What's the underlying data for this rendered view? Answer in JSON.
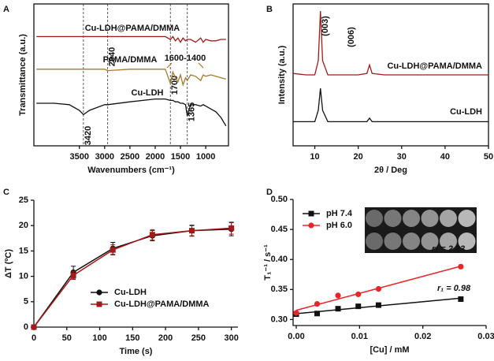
{
  "chart_data": [
    {
      "type": "line",
      "panel_label": "A",
      "xlabel": "Wavenumbers (cm⁻¹)",
      "ylabel": "Transmittance (a.u.)",
      "frame": "box",
      "xlim": [
        4400,
        550
      ],
      "ylim": [
        0,
        10
      ],
      "xticks": [
        3500,
        3000,
        2500,
        2000,
        1500,
        1000
      ],
      "x": [
        4350,
        4000,
        3700,
        3500,
        3420,
        3300,
        3000,
        2940,
        2500,
        2000,
        1800,
        1700,
        1650,
        1600,
        1550,
        1500,
        1450,
        1400,
        1365,
        1300,
        1200,
        1100,
        1050,
        1000,
        900,
        800,
        700,
        600
      ],
      "series": [
        {
          "name": "Cu-LDH@PAMA/DMMA",
          "color": "#a31a1a",
          "values": [
            7.7,
            7.7,
            7.7,
            7.7,
            7.7,
            7.7,
            7.7,
            7.7,
            7.7,
            7.7,
            7.7,
            7.5,
            7.7,
            7.4,
            7.6,
            7.3,
            7.6,
            7.4,
            7.5,
            7.5,
            7.3,
            7.6,
            7.3,
            7.5,
            7.4,
            7.4,
            7.5,
            7.5
          ]
        },
        {
          "name": "PAMA/DMMA",
          "color": "#a57a2a",
          "values": [
            5.4,
            5.4,
            5.4,
            5.4,
            5.4,
            5.4,
            5.4,
            5.3,
            5.4,
            5.4,
            5.4,
            4.4,
            5.2,
            4.8,
            4.5,
            5.0,
            4.3,
            4.8,
            4.6,
            5.0,
            4.9,
            4.6,
            5.0,
            4.9,
            5.0,
            4.9,
            4.8,
            4.7
          ]
        },
        {
          "name": "Cu-LDH",
          "color": "#111111",
          "values": [
            3.0,
            3.0,
            2.9,
            2.5,
            2.2,
            2.5,
            2.9,
            2.9,
            3.1,
            3.3,
            3.3,
            3.2,
            3.2,
            3.1,
            3.1,
            3.0,
            3.0,
            2.9,
            2.1,
            2.9,
            2.9,
            2.8,
            2.9,
            2.8,
            2.6,
            2.4,
            2.0,
            1.4
          ]
        }
      ],
      "vlines": [
        {
          "value": 3420,
          "label": "3420"
        },
        {
          "value": 2940,
          "label": "2940"
        },
        {
          "value": 1700,
          "label": "1700"
        },
        {
          "value": 1365,
          "label": "1365"
        }
      ],
      "annotations": [
        "1600-1400"
      ]
    },
    {
      "type": "line",
      "panel_label": "B",
      "xlabel": "2θ / Deg",
      "ylabel": "Intensity (a.u.)",
      "frame": "box",
      "xlim": [
        5,
        50
      ],
      "ylim": [
        0,
        10
      ],
      "xticks": [
        10,
        20,
        30,
        40,
        50
      ],
      "x": [
        5,
        8,
        10,
        10.8,
        11.3,
        11.8,
        13,
        16,
        20,
        22,
        22.6,
        23.2,
        26,
        30,
        35,
        40,
        45,
        50
      ],
      "series": [
        {
          "name": "Cu-LDH@PAMA/DMMA",
          "color": "#a31a1a",
          "values": [
            5.1,
            5.0,
            5.0,
            6.0,
            9.5,
            6.0,
            5.0,
            5.0,
            5.0,
            5.1,
            5.7,
            5.1,
            5.0,
            5.0,
            5.0,
            5.0,
            5.0,
            5.0
          ]
        },
        {
          "name": "Cu-LDH",
          "color": "#111111",
          "values": [
            1.7,
            1.7,
            1.7,
            2.5,
            4.05,
            2.5,
            1.7,
            1.7,
            1.7,
            1.7,
            1.95,
            1.7,
            1.7,
            1.7,
            1.7,
            1.7,
            1.7,
            1.7
          ]
        }
      ],
      "annotations": [
        "(003)",
        "(006)"
      ]
    },
    {
      "type": "line",
      "panel_label": "C",
      "xlabel": "Time (s)",
      "ylabel": "ΔT (ºC)",
      "frame": "axes",
      "legend": "lower right",
      "xlim": [
        0,
        310
      ],
      "ylim": [
        0,
        25
      ],
      "xticks": [
        0,
        50,
        100,
        150,
        200,
        250,
        300
      ],
      "yticks": [
        0,
        5,
        10,
        15,
        20,
        25
      ],
      "x": [
        0,
        60,
        120,
        180,
        240,
        300
      ],
      "series": [
        {
          "name": "Cu-LDH",
          "color": "#111111",
          "marker": "circle",
          "values": [
            0,
            10.8,
            15.5,
            18.0,
            19.0,
            19.3
          ],
          "errors": [
            0,
            1.2,
            1.2,
            1.0,
            1.0,
            1.3
          ]
        },
        {
          "name": "Cu-LDH@PAMA/DMMA",
          "color": "#a31a1a",
          "marker": "square",
          "values": [
            0,
            10.2,
            15.2,
            18.2,
            19.0,
            19.5
          ],
          "errors": [
            0,
            0.8,
            1.0,
            1.0,
            1.1,
            1.2
          ]
        }
      ]
    },
    {
      "type": "scatter",
      "panel_label": "D",
      "xlabel": "[Cu] / mM",
      "ylabel": "T₁⁻¹ / s⁻¹",
      "frame": "axes",
      "legend": "upper left",
      "xlim": [
        -0.0005,
        0.03
      ],
      "ylim": [
        0.29,
        0.5
      ],
      "xticks": [
        {
          "value": 0,
          "label": "0.00"
        },
        {
          "value": 0.01,
          "label": "0.01"
        },
        {
          "value": 0.02,
          "label": "0.02"
        },
        {
          "value": 0.03,
          "label": "0.03"
        }
      ],
      "yticks": [
        {
          "value": 0.3,
          "label": "0.30"
        },
        {
          "value": 0.35,
          "label": "0.35"
        },
        {
          "value": 0.4,
          "label": "0.40"
        },
        {
          "value": 0.45,
          "label": "0.45"
        },
        {
          "value": 0.5,
          "label": "0.50"
        }
      ],
      "x": [
        0,
        0.0033,
        0.0066,
        0.0098,
        0.013,
        0.026
      ],
      "series": [
        {
          "name": "pH 7.4",
          "color": "#111111",
          "marker": "square",
          "values": [
            0.309,
            0.31,
            0.318,
            0.322,
            0.324,
            0.334
          ],
          "fit_label": "r₁ = 0.98"
        },
        {
          "name": "pH 6.0",
          "color": "#e8262a",
          "marker": "circle",
          "values": [
            0.311,
            0.326,
            0.34,
            0.342,
            0.351,
            0.388
          ],
          "fit_label": "r₁ = 2.83"
        }
      ]
    }
  ]
}
